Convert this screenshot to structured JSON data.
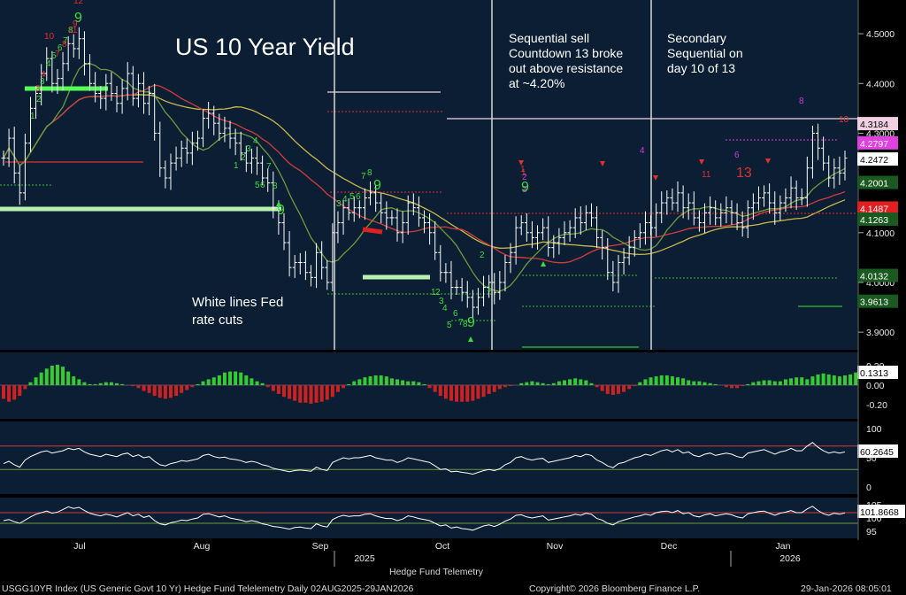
{
  "title": "US 10 Year Yield",
  "notes": {
    "sell_note": [
      "Sequential sell",
      "Countdown 13 broke",
      "out above resistance",
      "at ~4.20%"
    ],
    "secondary_note": [
      "Secondary",
      "Sequential on",
      "day 10 of 13"
    ],
    "fed_note": [
      "White lines Fed",
      "rate cuts"
    ]
  },
  "footer": {
    "left": "USGG10YR Index (US Generic Govt 10 Yr) Hedge Fund Telelemetry Daily 02AUG2025-29JAN2026",
    "center": "Copyright© 2026 Bloomberg Finance L.P.",
    "right": "29-Jan-2026 08:05:01",
    "brand": "Hedge Fund Telemetry"
  },
  "colors": {
    "background": "#0b1e33",
    "price": "#ffffff",
    "ma_yellow": "#c8b84a",
    "ma_red": "#d23c3c",
    "ma_green": "#6e9a3c",
    "td_green": "#3ddc3d",
    "td_red": "#e03030",
    "td_magenta": "#c040e0",
    "osc_green": "#33cc33",
    "osc_red": "#cc2222",
    "level_pink": "#e040e0",
    "level_red": "#e03030",
    "level_green": "#30c030"
  },
  "chart_data": {
    "type": "ohlc",
    "months": [
      "Jul",
      "Aug",
      "Sep",
      "Oct",
      "Nov",
      "Dec",
      "Jan"
    ],
    "years": [
      "2025",
      "2026"
    ],
    "y_ticks": [
      "4.5000",
      "4.4000",
      "4.3000",
      "4.2000",
      "4.1000",
      "4.0000",
      "3.9000"
    ],
    "ylim": [
      3.87,
      4.55
    ],
    "close": [
      4.25,
      4.29,
      4.22,
      4.18,
      4.28,
      4.35,
      4.38,
      4.42,
      4.45,
      4.4,
      4.41,
      4.44,
      4.48,
      4.47,
      4.49,
      4.44,
      4.4,
      4.38,
      4.37,
      4.4,
      4.38,
      4.36,
      4.39,
      4.42,
      4.37,
      4.4,
      4.36,
      4.38,
      4.3,
      4.23,
      4.21,
      4.24,
      4.25,
      4.27,
      4.26,
      4.28,
      4.29,
      4.33,
      4.34,
      4.32,
      4.3,
      4.31,
      4.29,
      4.28,
      4.26,
      4.24,
      4.25,
      4.24,
      4.21,
      4.2,
      4.15,
      4.12,
      4.08,
      4.03,
      4.04,
      4.04,
      4.02,
      4.01,
      4.06,
      4.03,
      4.0,
      4.1,
      4.12,
      4.15,
      4.14,
      4.15,
      4.15,
      4.17,
      4.18,
      4.16,
      4.14,
      4.13,
      4.13,
      4.1,
      4.12,
      4.16,
      4.15,
      4.13,
      4.12,
      4.1,
      4.06,
      4.02,
      4.02,
      3.99,
      3.99,
      3.98,
      3.97,
      3.95,
      3.97,
      3.99,
      4.0,
      3.98,
      4.0,
      4.04,
      4.06,
      4.11,
      4.12,
      4.1,
      4.09,
      4.1,
      4.11,
      4.07,
      4.08,
      4.09,
      4.1,
      4.11,
      4.13,
      4.12,
      4.14,
      4.13,
      4.09,
      4.07,
      4.02,
      4.0,
      4.04,
      4.05,
      4.07,
      4.09,
      4.1,
      4.12,
      4.11,
      4.14,
      4.16,
      4.17,
      4.16,
      4.18,
      4.15,
      4.16,
      4.13,
      4.12,
      4.14,
      4.15,
      4.13,
      4.14,
      4.15,
      4.14,
      4.12,
      4.11,
      4.15,
      4.16,
      4.17,
      4.18,
      4.16,
      4.14,
      4.16,
      4.17,
      4.19,
      4.17,
      4.17,
      4.23,
      4.3,
      4.27,
      4.24,
      4.21,
      4.23,
      4.22,
      4.25
    ],
    "lower_osc": [
      -0.14,
      -0.17,
      -0.15,
      -0.11,
      -0.04,
      0.03,
      0.08,
      0.13,
      0.17,
      0.2,
      0.21,
      0.19,
      0.14,
      0.09,
      0.06,
      0.03,
      0.01,
      0.01,
      0.02,
      0.03,
      0.03,
      0.02,
      0.01,
      0.0,
      -0.01,
      -0.03,
      -0.06,
      -0.08,
      -0.11,
      -0.13,
      -0.14,
      -0.13,
      -0.11,
      -0.08,
      -0.05,
      -0.02,
      0.01,
      0.04,
      0.06,
      0.08,
      0.1,
      0.13,
      0.14,
      0.14,
      0.13,
      0.1,
      0.07,
      0.04,
      0.02,
      -0.02,
      -0.06,
      -0.09,
      -0.12,
      -0.14,
      -0.16,
      -0.18,
      -0.18,
      -0.19,
      -0.18,
      -0.17,
      -0.15,
      -0.12,
      -0.07,
      -0.03,
      0.01,
      0.04,
      0.06,
      0.08,
      0.09,
      0.1,
      0.1,
      0.09,
      0.07,
      0.06,
      0.05,
      0.04,
      0.04,
      0.03,
      0.01,
      -0.03,
      -0.07,
      -0.11,
      -0.14,
      -0.16,
      -0.17,
      -0.17,
      -0.17,
      -0.16,
      -0.14,
      -0.12,
      -0.09,
      -0.07,
      -0.04,
      -0.02,
      -0.01,
      0.0,
      0.02,
      0.03,
      0.04,
      0.03,
      0.02,
      0.01,
      0.02,
      0.04,
      0.05,
      0.06,
      0.07,
      0.06,
      0.05,
      0.02,
      -0.02,
      -0.06,
      -0.09,
      -0.1,
      -0.09,
      -0.07,
      -0.04,
      -0.01,
      0.03,
      0.06,
      0.08,
      0.09,
      0.1,
      0.1,
      0.09,
      0.08,
      0.07,
      0.05,
      0.04,
      0.04,
      0.03,
      0.02,
      0.01,
      0.0,
      -0.02,
      -0.03,
      -0.03,
      -0.01,
      0.01,
      0.03,
      0.04,
      0.05,
      0.05,
      0.04,
      0.04,
      0.06,
      0.07,
      0.08,
      0.08,
      0.06,
      0.09,
      0.11,
      0.12,
      0.11,
      0.1,
      0.09,
      0.1,
      0.11,
      0.13
    ],
    "lower_osc_ticks": [
      "0.20",
      "0.00",
      "-0.20"
    ],
    "lower_osc_value": "0.1313",
    "rsi_ticks": [
      "100",
      "50",
      "0"
    ],
    "rsi_value": "60.2645",
    "rsi": [
      40,
      44,
      38,
      34,
      46,
      52,
      56,
      60,
      62,
      58,
      60,
      62,
      66,
      64,
      66,
      60,
      56,
      54,
      52,
      56,
      54,
      52,
      56,
      58,
      52,
      55,
      50,
      52,
      44,
      38,
      36,
      40,
      42,
      45,
      44,
      46,
      48,
      54,
      56,
      52,
      50,
      51,
      48,
      47,
      45,
      42,
      44,
      42,
      38,
      36,
      32,
      30,
      28,
      26,
      28,
      29,
      28,
      27,
      34,
      30,
      28,
      42,
      46,
      50,
      48,
      50,
      50,
      52,
      54,
      50,
      48,
      46,
      46,
      42,
      45,
      50,
      48,
      46,
      44,
      42,
      36,
      30,
      31,
      26,
      27,
      25,
      24,
      22,
      25,
      28,
      30,
      28,
      31,
      38,
      42,
      50,
      52,
      48,
      46,
      48,
      49,
      42,
      44,
      46,
      48,
      50,
      54,
      52,
      56,
      54,
      46,
      42,
      36,
      33,
      40,
      42,
      46,
      50,
      52,
      56,
      54,
      58,
      62,
      64,
      60,
      64,
      58,
      60,
      54,
      52,
      56,
      58,
      54,
      56,
      58,
      56,
      52,
      50,
      58,
      60,
      62,
      64,
      60,
      56,
      60,
      62,
      66,
      62,
      62,
      70,
      76,
      68,
      62,
      58,
      60,
      58,
      60
    ],
    "lower_ticks": [
      "105",
      "100",
      "95"
    ],
    "lower_value": "101.8668",
    "lower_line": [
      99.0,
      99.4,
      98.6,
      98.0,
      99.2,
      100.4,
      101.4,
      102.0,
      102.6,
      101.8,
      102.2,
      103.2,
      104.2,
      103.6,
      104.0,
      102.8,
      101.8,
      101.2,
      100.8,
      101.4,
      101.0,
      100.4,
      101.2,
      102.0,
      100.8,
      101.4,
      100.2,
      100.8,
      99.0,
      97.8,
      97.4,
      98.2,
      98.6,
      99.2,
      99.0,
      99.6,
      100.0,
      101.4,
      101.6,
      101.0,
      100.4,
      100.8,
      100.0,
      99.6,
      99.2,
      98.6,
      99.0,
      98.6,
      97.8,
      97.4,
      96.8,
      96.6,
      96.2,
      95.8,
      96.4,
      96.6,
      96.2,
      96.0,
      97.8,
      97.0,
      96.6,
      99.4,
      100.4,
      101.0,
      100.6,
      100.8,
      100.8,
      101.4,
      101.6,
      100.8,
      100.2,
      99.8,
      99.8,
      99.0,
      99.6,
      100.8,
      100.4,
      99.8,
      99.4,
      99.0,
      98.0,
      97.0,
      97.4,
      96.2,
      96.6,
      96.0,
      95.8,
      95.4,
      96.2,
      97.0,
      97.4,
      96.8,
      97.6,
      98.8,
      99.6,
      101.0,
      101.2,
      100.4,
      100.0,
      100.4,
      100.8,
      99.2,
      99.6,
      100.0,
      100.4,
      100.8,
      101.4,
      101.0,
      101.8,
      101.4,
      99.8,
      99.2,
      98.0,
      97.4,
      98.6,
      99.2,
      99.8,
      100.4,
      100.8,
      101.4,
      101.0,
      102.0,
      102.4,
      102.6,
      102.0,
      102.8,
      101.6,
      102.0,
      100.8,
      100.4,
      101.2,
      101.6,
      100.8,
      101.2,
      101.6,
      101.2,
      100.4,
      100.0,
      101.6,
      102.0,
      102.4,
      102.6,
      101.8,
      101.0,
      101.8,
      102.2,
      102.8,
      102.0,
      102.0,
      103.4,
      104.4,
      102.8,
      101.6,
      101.0,
      101.8,
      101.4,
      101.9
    ]
  },
  "td_counts": [
    {
      "t": "1",
      "c": "green"
    },
    {
      "t": "2",
      "c": "green"
    },
    {
      "t": "3",
      "c": "green"
    },
    {
      "t": "4",
      "c": "green"
    },
    {
      "t": "5",
      "c": "green"
    },
    {
      "t": "6",
      "c": "green"
    },
    {
      "t": "7",
      "c": "green"
    },
    {
      "t": "8",
      "c": "green"
    },
    {
      "t": "9",
      "c": "green"
    },
    {
      "t": "3",
      "c": "red"
    },
    {
      "t": "4",
      "c": "red"
    },
    {
      "t": "7",
      "c": "red"
    },
    {
      "t": "8",
      "c": "red"
    },
    {
      "t": "9",
      "c": "red"
    },
    {
      "t": "10",
      "c": "red"
    },
    {
      "t": "11",
      "c": "red"
    },
    {
      "t": "12",
      "c": "red"
    },
    {
      "t": "1",
      "c": "green"
    },
    {
      "t": "2",
      "c": "green"
    },
    {
      "t": "3",
      "c": "green"
    },
    {
      "t": "4",
      "c": "green"
    },
    {
      "t": "5",
      "c": "green"
    },
    {
      "t": "6",
      "c": "green"
    },
    {
      "t": "7",
      "c": "green"
    },
    {
      "t": "8",
      "c": "green"
    },
    {
      "t": "9",
      "c": "green"
    },
    {
      "t": "3",
      "c": "green"
    },
    {
      "t": "4",
      "c": "green"
    },
    {
      "t": "5",
      "c": "green"
    },
    {
      "t": "6",
      "c": "green"
    },
    {
      "t": "7",
      "c": "green"
    },
    {
      "t": "8",
      "c": "green"
    },
    {
      "t": "9",
      "c": "green"
    },
    {
      "t": "1",
      "c": "green"
    },
    {
      "t": "2",
      "c": "green"
    },
    {
      "t": "3",
      "c": "green"
    },
    {
      "t": "4",
      "c": "green"
    },
    {
      "t": "5",
      "c": "green"
    },
    {
      "t": "6",
      "c": "green"
    },
    {
      "t": "7",
      "c": "green"
    },
    {
      "t": "8",
      "c": "green"
    },
    {
      "t": "9",
      "c": "green"
    },
    {
      "t": "2",
      "c": "green"
    },
    {
      "t": "1",
      "c": "green"
    },
    {
      "t": "2",
      "c": "magenta"
    },
    {
      "t": "3",
      "c": "magenta"
    },
    {
      "t": "1",
      "c": "red"
    },
    {
      "t": "9",
      "c": "green"
    },
    {
      "t": "4",
      "c": "magenta"
    },
    {
      "t": "1",
      "c": "red"
    },
    {
      "t": "13",
      "c": "red"
    },
    {
      "t": "6",
      "c": "magenta"
    },
    {
      "t": "11",
      "c": "red"
    },
    {
      "t": "8",
      "c": "magenta"
    },
    {
      "t": "10",
      "c": "red"
    }
  ]
}
